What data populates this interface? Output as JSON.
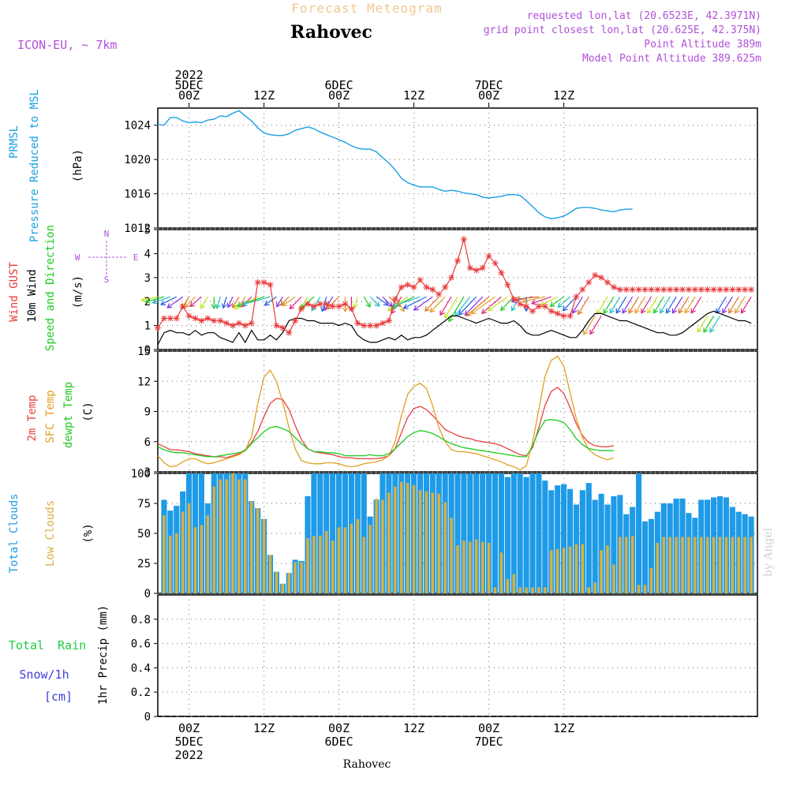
{
  "header": {
    "top_title": "Forecast Meteogram",
    "station": "Rahovec",
    "model": "ICON-EU, ~ 7km",
    "requested": "requested lon,lat (20.6523E, 42.3971N)",
    "grid_point": "grid point closest lon,lat (20.625E, 42.375N)",
    "point_alt": "Point Altitude 389m",
    "model_alt": "Model Point Altitude 389.625m",
    "footer_station": "Rahovec",
    "watermark": "by Angel"
  },
  "colors": {
    "pressure": "#1a9fe6",
    "wind": "#000000",
    "gust": "#e83a3a",
    "t2m": "#e84040",
    "sfc": "#e0a020",
    "dew": "#20cc20",
    "total_clouds": "#1e9be8",
    "low_clouds": "#d8b040",
    "rain": "#20cc40",
    "snow": "#4040e0",
    "label_purple": "#b050d8",
    "grid": "#888888"
  },
  "time_axis": {
    "x_range_hours": [
      -5,
      91
    ],
    "major_ticks": [
      {
        "h": 0,
        "top": [
          "2022",
          "5DEC",
          "00Z"
        ],
        "bottom": [
          "00Z",
          "5DEC",
          "2022"
        ]
      },
      {
        "h": 12,
        "top": [
          "12Z"
        ],
        "bottom": [
          "12Z"
        ]
      },
      {
        "h": 24,
        "top": [
          "6DEC",
          "00Z"
        ],
        "bottom": [
          "00Z",
          "6DEC"
        ]
      },
      {
        "h": 36,
        "top": [
          "12Z"
        ],
        "bottom": [
          "12Z"
        ]
      },
      {
        "h": 48,
        "top": [
          "7DEC",
          "00Z"
        ],
        "bottom": [
          "00Z",
          "7DEC"
        ]
      },
      {
        "h": 60,
        "top": [
          "12Z"
        ],
        "bottom": [
          "12Z"
        ]
      }
    ]
  },
  "chart_data": [
    {
      "id": "pressure",
      "type": "line",
      "ylabel_lines": [
        "PRMSL",
        "Pressure Reduced to MSL"
      ],
      "unit": "(hPa)",
      "ylim": [
        1012,
        1026
      ],
      "yticks": [
        1012,
        1016,
        1020,
        1024
      ],
      "x": [
        -5,
        -4,
        -3,
        -2,
        -1,
        0,
        1,
        2,
        3,
        4,
        5,
        6,
        7,
        8,
        9,
        10,
        11,
        12,
        13,
        14,
        15,
        16,
        17,
        18,
        19,
        20,
        21,
        22,
        23,
        24,
        25,
        26,
        27,
        28,
        29,
        30,
        31,
        32,
        33,
        34,
        35,
        36,
        37,
        38,
        39,
        40,
        41,
        42,
        43,
        44,
        45,
        46,
        47,
        48,
        49,
        50,
        51,
        52,
        53,
        54,
        55,
        56,
        57,
        58,
        59,
        60,
        61,
        62,
        63,
        64,
        65,
        66,
        67,
        68,
        69,
        70,
        71
      ],
      "y": [
        1024.1,
        1024.0,
        1024.9,
        1024.9,
        1024.5,
        1024.3,
        1024.4,
        1024.3,
        1024.6,
        1024.7,
        1025.1,
        1025.0,
        1025.4,
        1025.7,
        1025.1,
        1024.5,
        1023.7,
        1023.1,
        1022.9,
        1022.8,
        1022.8,
        1023.0,
        1023.4,
        1023.6,
        1023.8,
        1023.6,
        1023.2,
        1022.9,
        1022.6,
        1022.3,
        1022.0,
        1021.6,
        1021.3,
        1021.2,
        1021.2,
        1020.9,
        1020.2,
        1019.6,
        1018.8,
        1017.8,
        1017.3,
        1017.0,
        1016.8,
        1016.8,
        1016.8,
        1016.5,
        1016.3,
        1016.4,
        1016.3,
        1016.1,
        1016.0,
        1015.9,
        1015.6,
        1015.5,
        1015.6,
        1015.7,
        1015.9,
        1015.9,
        1015.8,
        1015.2,
        1014.5,
        1013.8,
        1013.3,
        1013.1,
        1013.2,
        1013.4,
        1013.8,
        1014.3,
        1014.4,
        1014.4,
        1014.3,
        1014.1,
        1014.0,
        1013.9,
        1014.1,
        1014.2,
        1014.2
      ]
    },
    {
      "id": "wind",
      "type": "line",
      "ylabel_lines": [
        "Wind GUST",
        "10m Wind",
        "Speed and Direction"
      ],
      "unit": "(m/s)",
      "ylim": [
        0,
        5
      ],
      "yticks": [
        0,
        1,
        2,
        3,
        4,
        5
      ],
      "compass": [
        "N",
        "S",
        "W",
        "E"
      ],
      "x": [
        -5,
        -4,
        -3,
        -2,
        -1,
        0,
        1,
        2,
        3,
        4,
        5,
        6,
        7,
        8,
        9,
        10,
        11,
        12,
        13,
        14,
        15,
        16,
        17,
        18,
        19,
        20,
        21,
        22,
        23,
        24,
        25,
        26,
        27,
        28,
        29,
        30,
        31,
        32,
        33,
        34,
        35,
        36,
        37,
        38,
        39,
        40,
        41,
        42,
        43,
        44,
        45,
        46,
        47,
        48,
        49,
        50,
        51,
        52,
        53,
        54,
        55,
        56,
        57,
        58,
        59,
        60,
        61,
        62,
        63,
        64,
        65,
        66,
        67,
        68,
        69,
        70,
        71,
        72,
        73,
        74,
        75,
        76,
        77,
        78,
        79,
        80,
        81,
        82,
        83,
        84,
        85,
        86,
        87,
        88,
        89,
        90
      ],
      "wind_speed": [
        0.2,
        0.7,
        0.8,
        0.7,
        0.7,
        0.6,
        0.8,
        0.6,
        0.7,
        0.7,
        0.5,
        0.4,
        0.3,
        0.7,
        0.3,
        0.8,
        0.4,
        0.4,
        0.6,
        0.4,
        0.7,
        1.2,
        1.3,
        1.3,
        1.2,
        1.2,
        1.1,
        1.1,
        1.1,
        1.0,
        1.1,
        1.0,
        0.6,
        0.4,
        0.3,
        0.3,
        0.4,
        0.5,
        0.4,
        0.6,
        0.4,
        0.5,
        0.5,
        0.6,
        0.8,
        1.0,
        1.2,
        1.4,
        1.4,
        1.3,
        1.2,
        1.1,
        1.2,
        1.3,
        1.2,
        1.1,
        1.1,
        1.2,
        1.0,
        0.7,
        0.6,
        0.6,
        0.7,
        0.8,
        0.7,
        0.6,
        0.5,
        0.5,
        0.8,
        1.2,
        1.5,
        1.5,
        1.4,
        1.3,
        1.2,
        1.2,
        1.1,
        1.0,
        0.9,
        0.8,
        0.7,
        0.7,
        0.6,
        0.6,
        0.7,
        0.9,
        1.1,
        1.3,
        1.5,
        1.6,
        1.5,
        1.4,
        1.3,
        1.2,
        1.2,
        1.1
      ],
      "gust": [
        0.9,
        1.3,
        1.3,
        1.3,
        1.8,
        1.4,
        1.3,
        1.2,
        1.3,
        1.2,
        1.2,
        1.1,
        1.0,
        1.1,
        1.0,
        1.1,
        2.8,
        2.8,
        2.7,
        1.0,
        0.9,
        0.7,
        1.2,
        1.7,
        1.9,
        1.8,
        1.9,
        1.9,
        1.8,
        1.8,
        1.9,
        1.7,
        1.1,
        1.0,
        1.0,
        1.0,
        1.1,
        1.2,
        2.1,
        2.6,
        2.7,
        2.6,
        2.9,
        2.6,
        2.5,
        2.3,
        2.6,
        3.0,
        3.7,
        4.6,
        3.4,
        3.3,
        3.4,
        3.9,
        3.6,
        3.2,
        2.7,
        2.1,
        1.9,
        1.8,
        1.6,
        1.8,
        1.8,
        1.6,
        1.5,
        1.4,
        1.4,
        2.2,
        2.5,
        2.8,
        3.1,
        3.0,
        2.8,
        2.6,
        2.5,
        2.5,
        2.5,
        2.5,
        2.5,
        2.5,
        2.5,
        2.5,
        2.5,
        2.5,
        2.5,
        2.5,
        2.5,
        2.5,
        2.5,
        2.5,
        2.5,
        2.5,
        2.5,
        2.5,
        2.5,
        2.5
      ],
      "arrow_dir_deg": [
        250,
        245,
        240,
        230,
        220,
        200,
        210,
        215,
        200,
        180,
        190,
        190,
        195,
        200,
        200,
        210,
        230,
        240,
        245,
        220,
        200,
        210,
        220,
        210,
        200,
        215,
        200,
        190,
        200,
        210,
        180,
        180,
        190,
        160,
        150,
        140,
        150,
        145,
        160,
        200,
        220,
        230,
        240,
        230,
        220,
        210,
        210,
        200,
        200,
        200,
        205,
        210,
        210,
        215,
        220,
        215,
        220,
        210,
        200,
        180,
        250,
        260,
        250,
        240,
        230,
        220,
        215,
        210,
        200,
        200,
        200,
        200,
        200,
        200,
        200,
        200,
        200,
        200,
        200,
        200,
        200,
        200,
        200,
        200,
        200,
        200,
        200,
        200,
        200,
        200,
        200,
        200,
        200,
        200,
        200,
        200
      ]
    },
    {
      "id": "temperature",
      "type": "line",
      "ylabel_lines": [
        "2m Temp",
        "SFC Temp",
        "dewpt Temp"
      ],
      "unit": "(C)",
      "ylim": [
        3,
        15
      ],
      "yticks": [
        3,
        6,
        9,
        12,
        15
      ],
      "series": [
        {
          "name": "2m Temp",
          "color_key": "t2m",
          "y": [
            5.8,
            5.5,
            5.2,
            5.2,
            5.1,
            5.0,
            4.8,
            4.7,
            4.6,
            4.5,
            4.5,
            4.4,
            4.6,
            4.8,
            5.2,
            5.9,
            7.0,
            8.5,
            9.8,
            10.3,
            10.2,
            9.2,
            7.6,
            6.2,
            5.3,
            5.0,
            4.9,
            4.8,
            4.7,
            4.5,
            4.4,
            4.4,
            4.3,
            4.3,
            4.3,
            4.3,
            4.4,
            4.6,
            5.3,
            6.9,
            8.4,
            9.3,
            9.5,
            9.2,
            8.6,
            7.9,
            7.2,
            6.9,
            6.6,
            6.4,
            6.3,
            6.1,
            6.0,
            5.9,
            5.8,
            5.6,
            5.3,
            5.0,
            4.7,
            4.6,
            5.4,
            7.4,
            9.6,
            11.0,
            11.4,
            10.8,
            9.4,
            7.8,
            6.6,
            5.9,
            5.6,
            5.5,
            5.5,
            5.6
          ]
        },
        {
          "name": "SFC Temp",
          "color_key": "sfc",
          "y": [
            4.6,
            3.9,
            3.5,
            3.6,
            4.0,
            4.3,
            4.3,
            4.0,
            3.8,
            3.9,
            4.1,
            4.3,
            4.5,
            4.7,
            5.1,
            6.5,
            9.8,
            12.4,
            13.1,
            12.0,
            9.9,
            7.4,
            5.3,
            4.1,
            3.9,
            3.8,
            3.8,
            3.9,
            3.9,
            3.8,
            3.6,
            3.5,
            3.6,
            3.8,
            3.9,
            4.0,
            4.2,
            4.6,
            6.0,
            8.6,
            10.7,
            11.5,
            11.8,
            11.3,
            9.6,
            7.4,
            6.0,
            5.2,
            5.0,
            5.0,
            4.9,
            4.8,
            4.6,
            4.4,
            4.2,
            4.0,
            3.7,
            3.5,
            3.2,
            3.6,
            5.9,
            9.2,
            12.5,
            14.1,
            14.5,
            13.5,
            10.9,
            8.3,
            6.4,
            5.2,
            4.7,
            4.4,
            4.2,
            4.4
          ]
        },
        {
          "name": "dewpt Temp",
          "color_key": "dew",
          "y": [
            5.5,
            5.2,
            5.0,
            4.9,
            4.9,
            4.8,
            4.7,
            4.6,
            4.5,
            4.5,
            4.6,
            4.7,
            4.8,
            4.9,
            5.1,
            5.8,
            6.4,
            7.0,
            7.4,
            7.5,
            7.3,
            7.0,
            6.4,
            5.8,
            5.3,
            5.0,
            5.0,
            4.9,
            4.9,
            4.8,
            4.6,
            4.6,
            4.6,
            4.6,
            4.7,
            4.6,
            4.6,
            4.8,
            5.3,
            5.9,
            6.5,
            6.9,
            7.1,
            7.0,
            6.8,
            6.5,
            6.1,
            5.8,
            5.6,
            5.4,
            5.3,
            5.2,
            5.1,
            5.0,
            4.9,
            4.8,
            4.7,
            4.6,
            4.5,
            4.5,
            5.6,
            7.1,
            8.1,
            8.2,
            8.1,
            7.9,
            7.2,
            6.3,
            5.7,
            5.3,
            5.2,
            5.1,
            5.1,
            5.1
          ]
        }
      ],
      "x": [
        -5,
        -4,
        -3,
        -2,
        -1,
        0,
        1,
        2,
        3,
        4,
        5,
        6,
        7,
        8,
        9,
        10,
        11,
        12,
        13,
        14,
        15,
        16,
        17,
        18,
        19,
        20,
        21,
        22,
        23,
        24,
        25,
        26,
        27,
        28,
        29,
        30,
        31,
        32,
        33,
        34,
        35,
        36,
        37,
        38,
        39,
        40,
        41,
        42,
        43,
        44,
        45,
        46,
        47,
        48,
        49,
        50,
        51,
        52,
        53,
        54,
        55,
        56,
        57,
        58,
        59,
        60,
        61,
        62,
        63,
        64,
        65,
        66,
        67,
        68
      ]
    },
    {
      "id": "clouds",
      "type": "bar",
      "ylabel_lines": [
        "Total Clouds",
        "Low Clouds"
      ],
      "unit": "(%)",
      "ylim": [
        0,
        100
      ],
      "yticks": [
        0,
        25,
        50,
        75,
        100
      ],
      "x": [
        -4,
        -3,
        -2,
        -1,
        0,
        1,
        2,
        3,
        4,
        5,
        6,
        7,
        8,
        9,
        10,
        11,
        12,
        13,
        14,
        15,
        16,
        17,
        18,
        19,
        20,
        21,
        22,
        23,
        24,
        25,
        26,
        27,
        28,
        29,
        30,
        31,
        32,
        33,
        34,
        35,
        36,
        37,
        38,
        39,
        40,
        41,
        42,
        43,
        44,
        45,
        46,
        47,
        48,
        49,
        50,
        51,
        52,
        53,
        54,
        55,
        56,
        57,
        58,
        59,
        60,
        61,
        62,
        63,
        64,
        65,
        66,
        67,
        68,
        69,
        70,
        71,
        72,
        73,
        74,
        75,
        76,
        77,
        78,
        79,
        80,
        81,
        82,
        83,
        84,
        85,
        86,
        87,
        88,
        89,
        90
      ],
      "total": [
        78,
        69,
        73,
        85,
        100,
        100,
        100,
        75,
        100,
        100,
        100,
        100,
        100,
        100,
        77,
        71,
        62,
        32,
        18,
        8,
        17,
        28,
        27,
        81,
        100,
        100,
        100,
        100,
        100,
        100,
        100,
        100,
        100,
        64,
        78,
        100,
        100,
        100,
        100,
        100,
        100,
        100,
        100,
        100,
        100,
        100,
        100,
        100,
        100,
        100,
        100,
        100,
        100,
        100,
        100,
        97,
        100,
        100,
        97,
        100,
        100,
        94,
        86,
        90,
        91,
        87,
        74,
        86,
        92,
        78,
        83,
        74,
        81,
        82,
        66,
        72,
        100,
        60,
        62,
        68,
        75,
        75,
        79,
        79,
        67,
        63,
        78,
        78,
        80,
        81,
        80,
        72,
        68,
        66,
        64
      ],
      "low": [
        65,
        48,
        50,
        68,
        75,
        55,
        57,
        65,
        89,
        95,
        95,
        100,
        95,
        95,
        77,
        71,
        62,
        32,
        18,
        8,
        17,
        26,
        26,
        46,
        48,
        48,
        52,
        44,
        55,
        55,
        58,
        62,
        47,
        57,
        79,
        78,
        84,
        89,
        93,
        92,
        90,
        86,
        85,
        84,
        83,
        76,
        63,
        40,
        44,
        43,
        45,
        43,
        42,
        5,
        34,
        12,
        16,
        5,
        5,
        5,
        5,
        5,
        36,
        37,
        38,
        39,
        41,
        41,
        5,
        9,
        36,
        40,
        24,
        47,
        47,
        48,
        7,
        7,
        21,
        42,
        47,
        47,
        47,
        47,
        47,
        47,
        47,
        47,
        47,
        47,
        47,
        47,
        47,
        47,
        47
      ]
    },
    {
      "id": "precip",
      "type": "bar",
      "ylabel_lines": [
        "Total Rain",
        "Snow/1h",
        "[cm]"
      ],
      "unit": "1hr Precip (mm)",
      "ylim": [
        0,
        1
      ],
      "yticks": [
        0,
        0.2,
        0.4,
        0.6,
        0.8
      ],
      "x": [],
      "rain": [],
      "snow": []
    }
  ]
}
